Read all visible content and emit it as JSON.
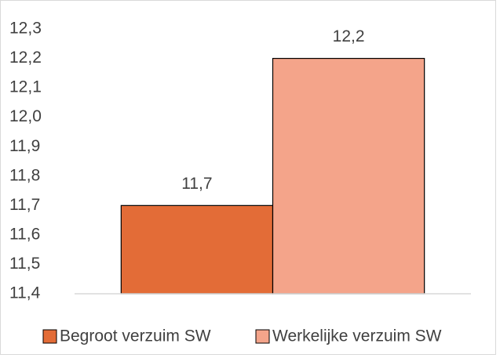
{
  "chart_data": {
    "type": "bar",
    "categories": [
      null
    ],
    "series": [
      {
        "name": "Begroot verzuim SW",
        "color": "#e36c37",
        "values": [
          11.7
        ],
        "value_labels": [
          "11,7"
        ]
      },
      {
        "name": "Werkelijke verzuim SW",
        "color": "#f4a48a",
        "values": [
          12.2
        ],
        "value_labels": [
          "12,2"
        ]
      }
    ],
    "ylim": [
      11.4,
      12.3
    ],
    "yticks": [
      {
        "value": 11.4,
        "label": "11,4"
      },
      {
        "value": 11.5,
        "label": "11,5"
      },
      {
        "value": 11.6,
        "label": "11,6"
      },
      {
        "value": 11.7,
        "label": "11,7"
      },
      {
        "value": 11.8,
        "label": "11,8"
      },
      {
        "value": 11.9,
        "label": "11,9"
      },
      {
        "value": 12.0,
        "label": "12,0"
      },
      {
        "value": 12.1,
        "label": "12,1"
      },
      {
        "value": 12.2,
        "label": "12,2"
      },
      {
        "value": 12.3,
        "label": "12,3"
      }
    ],
    "grid": false,
    "legend": "bottom"
  }
}
